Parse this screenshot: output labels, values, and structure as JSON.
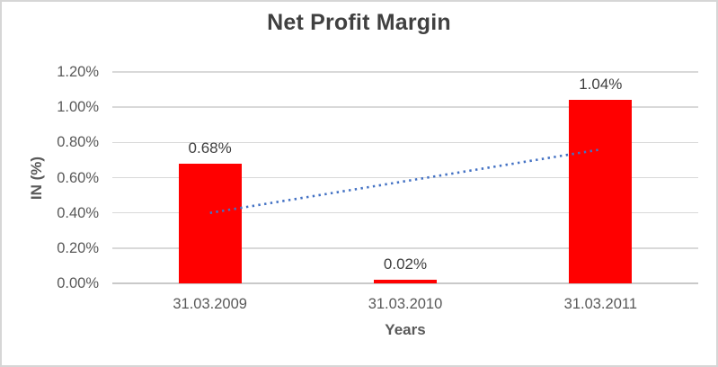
{
  "chart_data": {
    "type": "bar",
    "title": "Net Profit Margin",
    "categories": [
      "31.03.2009",
      "31.03.2010",
      "31.03.2011"
    ],
    "values": [
      0.68,
      0.02,
      1.04
    ],
    "data_labels": [
      "0.68%",
      "0.02%",
      "1.04%"
    ],
    "xlabel": "Years",
    "ylabel": "IN (%)",
    "ylim": [
      0,
      1.2
    ],
    "y_ticks": [
      {
        "value": 0.0,
        "label": "0.00%"
      },
      {
        "value": 0.2,
        "label": "0.20%"
      },
      {
        "value": 0.4,
        "label": "0.40%"
      },
      {
        "value": 0.6,
        "label": "0.60%"
      },
      {
        "value": 0.8,
        "label": "0.80%"
      },
      {
        "value": 1.0,
        "label": "1.00%"
      },
      {
        "value": 1.2,
        "label": "1.20%"
      }
    ],
    "grid": true,
    "legend": false,
    "trendline": {
      "type": "linear",
      "style": "dotted",
      "start_value": 0.4,
      "end_value": 0.76
    },
    "colors": {
      "bar": "#ff0000",
      "trendline": "#4472c4",
      "title_text": "#404040",
      "axis_text": "#595959",
      "data_label_text": "#404040",
      "gridline": "#d9d9d9",
      "axis_line": "#c9c9c9",
      "frame_border": "#d6d6d6"
    }
  }
}
